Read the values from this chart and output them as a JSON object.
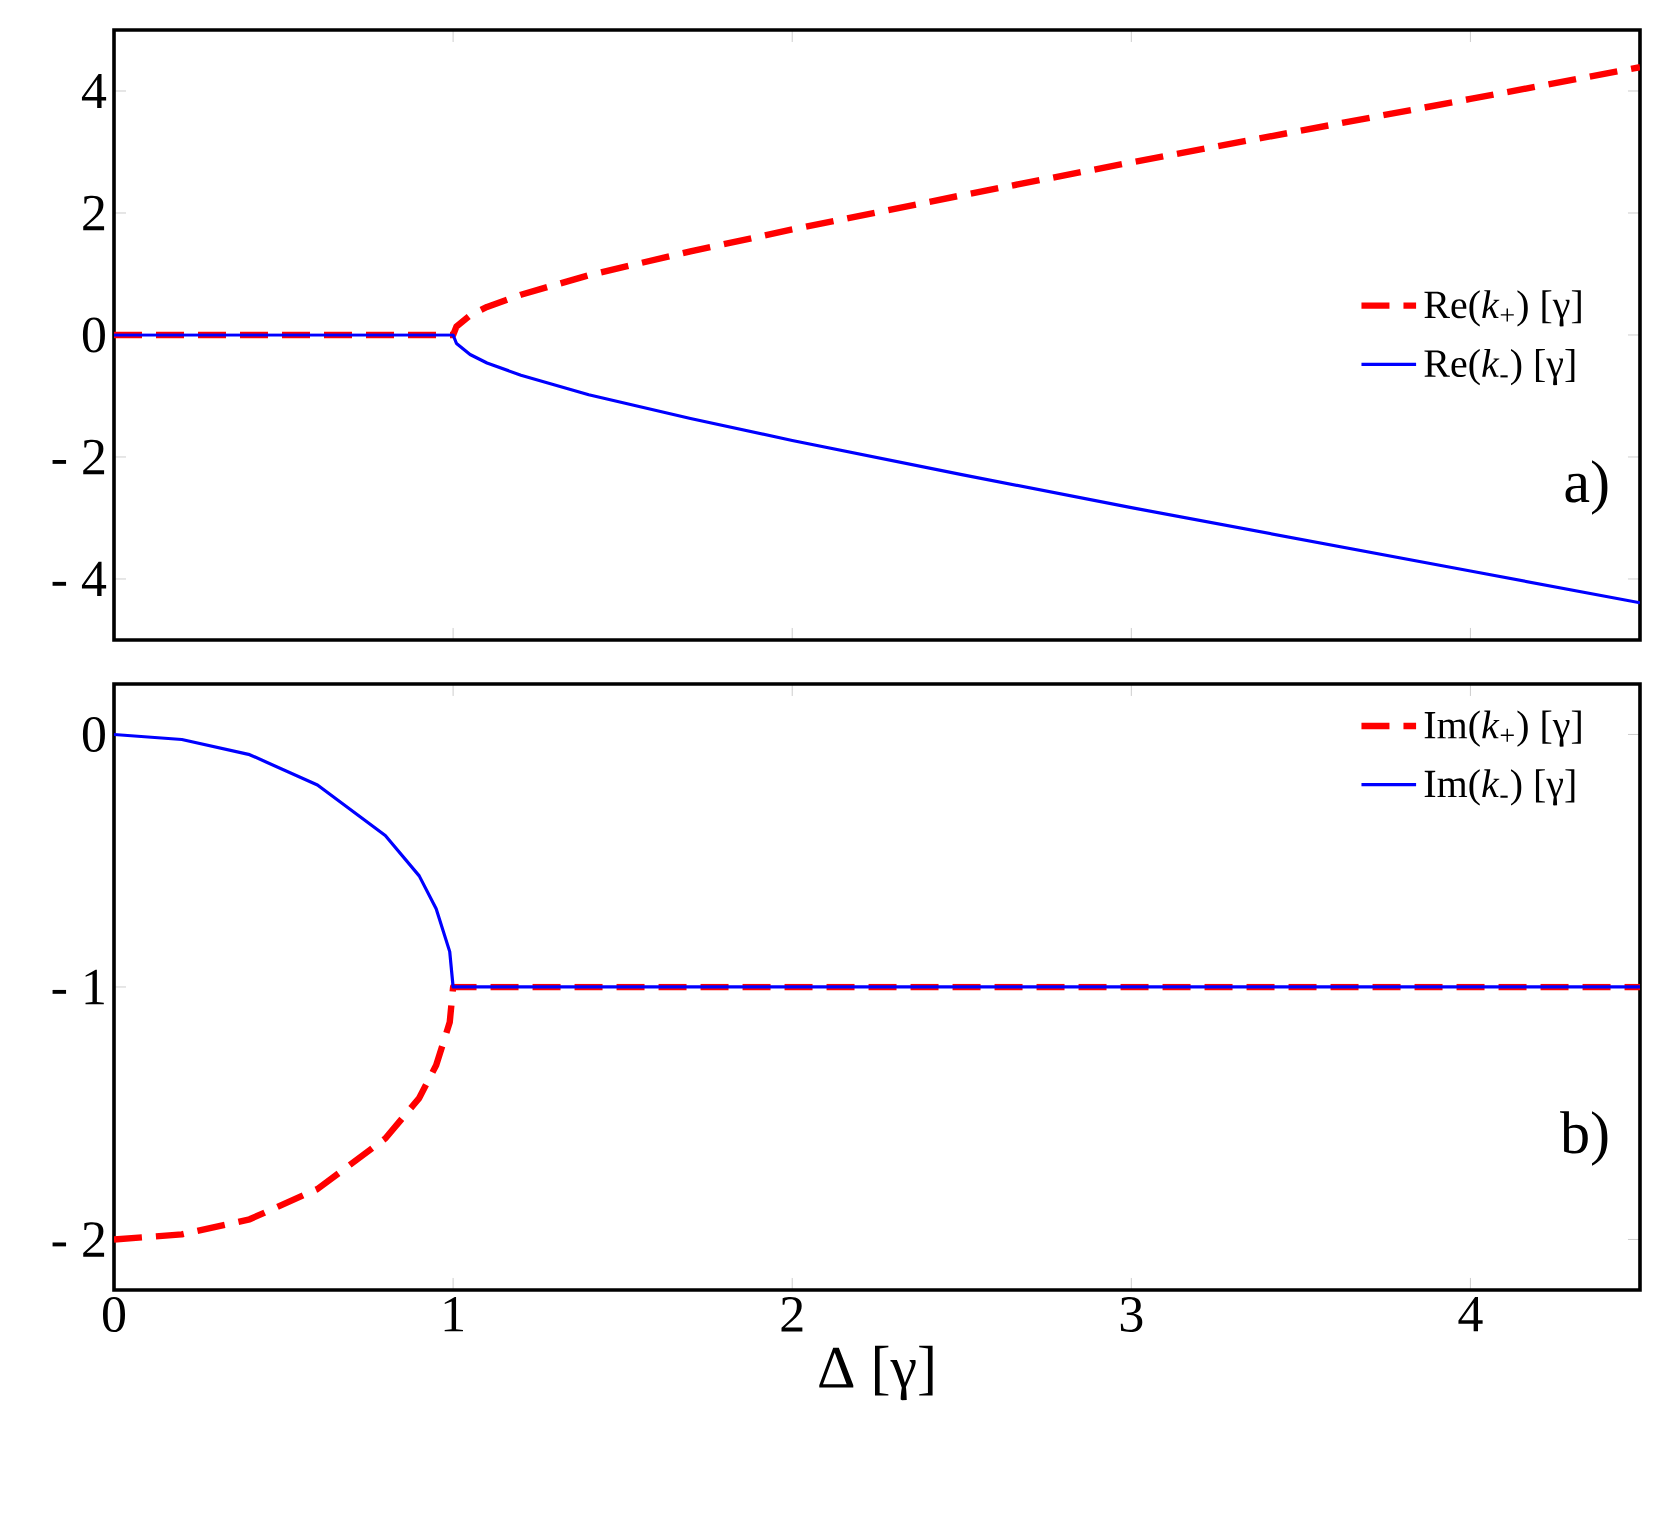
{
  "chart_data": [
    {
      "type": "line",
      "xlim": [
        0,
        4.5
      ],
      "xticks": [
        0,
        1,
        2,
        3,
        4
      ],
      "ylim": [
        -5,
        5
      ],
      "yticks": [
        {
          "value": -4,
          "label": "- 4"
        },
        {
          "value": -2,
          "label": "- 2"
        },
        0,
        2,
        4
      ],
      "tick_labels": "y",
      "legend": "right",
      "annotations": [
        "a)"
      ],
      "series": [
        {
          "name": "Re(*k*$_{+}$) [γ]",
          "color": "#ff0000",
          "line_style": "dashed",
          "x": [
            0,
            1,
            1.01,
            1.05,
            1.1,
            1.2,
            1.4,
            1.7,
            2,
            2.5,
            3,
            3.5,
            4,
            4.5
          ],
          "values": [
            0,
            0,
            0.14,
            0.32,
            0.46,
            0.66,
            0.98,
            1.37,
            1.73,
            2.29,
            2.83,
            3.35,
            3.87,
            4.39
          ]
        },
        {
          "name": "Re(*k*$_{-}$) [γ]",
          "color": "#0000ff",
          "line_style": "solid",
          "x": [
            0,
            1,
            1.01,
            1.05,
            1.1,
            1.2,
            1.4,
            1.7,
            2,
            2.5,
            3,
            3.5,
            4,
            4.5
          ],
          "values": [
            0,
            0,
            -0.14,
            -0.32,
            -0.46,
            -0.66,
            -0.98,
            -1.37,
            -1.73,
            -2.29,
            -2.83,
            -3.35,
            -3.87,
            -4.39
          ]
        }
      ]
    },
    {
      "type": "line",
      "xlim": [
        0,
        4.5
      ],
      "xticks": [
        0,
        1,
        2,
        3,
        4
      ],
      "ylim": [
        -2.2,
        0.2
      ],
      "yticks": [
        {
          "value": -2,
          "label": "- 2"
        },
        {
          "value": -1,
          "label": "- 1"
        },
        0
      ],
      "xlabel": "Δ [γ]",
      "legend": "top right",
      "annotations": [
        "b)"
      ],
      "series": [
        {
          "name": "Im(*k*$_{+}$) [γ]",
          "color": "#ff0000",
          "line_style": "dashed",
          "x": [
            0,
            0.2,
            0.4,
            0.6,
            0.8,
            0.9,
            0.95,
            0.99,
            1,
            4.5
          ],
          "values": [
            -2,
            -1.98,
            -1.92,
            -1.8,
            -1.6,
            -1.44,
            -1.31,
            -1.14,
            -1,
            -1
          ]
        },
        {
          "name": "Im(*k*$_{-}$) [γ]",
          "color": "#0000ff",
          "line_style": "solid",
          "x": [
            0,
            0.2,
            0.4,
            0.6,
            0.8,
            0.9,
            0.95,
            0.99,
            1,
            4.5
          ],
          "values": [
            0,
            -0.02,
            -0.08,
            -0.2,
            -0.4,
            -0.56,
            -0.69,
            -0.86,
            -1,
            -1
          ]
        }
      ]
    }
  ]
}
